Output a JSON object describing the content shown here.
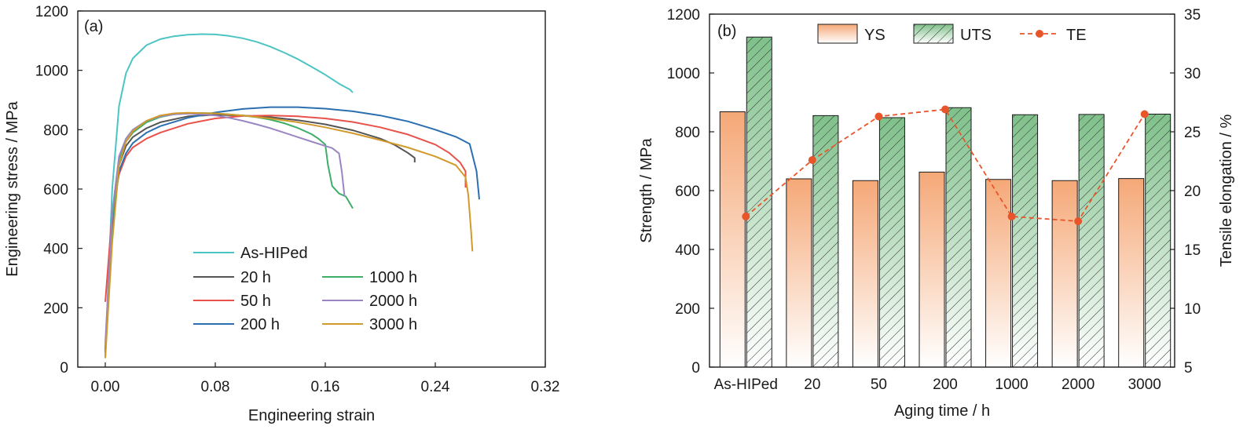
{
  "chart_data": [
    {
      "type": "line",
      "panel_label": "(a)",
      "xlabel": "Engineering strain",
      "ylabel": "Engineering stress / MPa",
      "xlim": [
        -0.02,
        0.32
      ],
      "ylim": [
        0,
        1200
      ],
      "xticks": [
        0.0,
        0.08,
        0.16,
        0.24,
        0.32
      ],
      "xtick_labels": [
        "0.00",
        "0.08",
        "0.16",
        "0.24",
        "0.32"
      ],
      "yticks": [
        0,
        200,
        400,
        600,
        800,
        1000,
        1200
      ],
      "ytick_labels": [
        "0",
        "200",
        "400",
        "600",
        "800",
        "1000",
        "1200"
      ],
      "grid": false,
      "legend_placement": "bottom-center, two columns",
      "series": [
        {
          "name": "As-HIPed",
          "color": "#4cc4c4",
          "x": [
            0.0,
            0.005,
            0.01,
            0.015,
            0.02,
            0.03,
            0.04,
            0.05,
            0.06,
            0.07,
            0.08,
            0.09,
            0.1,
            0.11,
            0.12,
            0.13,
            0.14,
            0.15,
            0.16,
            0.17,
            0.178,
            0.18
          ],
          "y": [
            40,
            600,
            880,
            990,
            1040,
            1085,
            1105,
            1115,
            1120,
            1122,
            1121,
            1116,
            1108,
            1096,
            1080,
            1060,
            1038,
            1012,
            985,
            955,
            935,
            925
          ]
        },
        {
          "name": "20 h",
          "color": "#555555",
          "x": [
            0.0,
            0.005,
            0.01,
            0.015,
            0.02,
            0.03,
            0.04,
            0.06,
            0.08,
            0.1,
            0.12,
            0.14,
            0.16,
            0.18,
            0.2,
            0.21,
            0.22,
            0.225,
            0.225
          ],
          "y": [
            50,
            450,
            680,
            745,
            775,
            805,
            825,
            845,
            850,
            848,
            842,
            832,
            818,
            798,
            770,
            750,
            722,
            705,
            690
          ]
        },
        {
          "name": "50 h",
          "color": "#e8524a",
          "x": [
            0.0,
            0.005,
            0.01,
            0.015,
            0.02,
            0.03,
            0.04,
            0.06,
            0.08,
            0.1,
            0.12,
            0.14,
            0.16,
            0.18,
            0.2,
            0.22,
            0.24,
            0.25,
            0.258,
            0.262,
            0.262
          ],
          "y": [
            220,
            520,
            650,
            710,
            740,
            770,
            790,
            820,
            838,
            846,
            848,
            845,
            838,
            826,
            808,
            784,
            750,
            722,
            690,
            660,
            605
          ]
        },
        {
          "name": "200 h",
          "color": "#2c6fb0",
          "x": [
            0.0,
            0.005,
            0.01,
            0.015,
            0.02,
            0.03,
            0.04,
            0.06,
            0.08,
            0.1,
            0.12,
            0.14,
            0.16,
            0.18,
            0.2,
            0.22,
            0.24,
            0.255,
            0.265,
            0.27,
            0.272
          ],
          "y": [
            60,
            480,
            660,
            720,
            755,
            790,
            812,
            840,
            858,
            870,
            876,
            876,
            871,
            862,
            848,
            828,
            800,
            776,
            752,
            660,
            565
          ]
        },
        {
          "name": "1000 h",
          "color": "#3fae66",
          "x": [
            0.0,
            0.005,
            0.01,
            0.015,
            0.02,
            0.03,
            0.04,
            0.05,
            0.06,
            0.07,
            0.08,
            0.09,
            0.1,
            0.11,
            0.12,
            0.13,
            0.14,
            0.15,
            0.155,
            0.16,
            0.162,
            0.165,
            0.17,
            0.175,
            0.18
          ],
          "y": [
            30,
            500,
            700,
            760,
            790,
            825,
            843,
            852,
            855,
            856,
            855,
            852,
            848,
            842,
            834,
            822,
            806,
            785,
            770,
            750,
            680,
            610,
            585,
            575,
            535
          ]
        },
        {
          "name": "2000 h",
          "color": "#9b86c4",
          "x": [
            0.0,
            0.005,
            0.01,
            0.015,
            0.02,
            0.03,
            0.04,
            0.05,
            0.06,
            0.07,
            0.08,
            0.09,
            0.1,
            0.11,
            0.12,
            0.13,
            0.14,
            0.15,
            0.16,
            0.165,
            0.17,
            0.172,
            0.174
          ],
          "y": [
            80,
            520,
            710,
            770,
            800,
            830,
            845,
            852,
            854,
            852,
            848,
            840,
            830,
            818,
            805,
            790,
            775,
            760,
            745,
            738,
            720,
            660,
            575
          ]
        },
        {
          "name": "3000 h",
          "color": "#d19a2a",
          "x": [
            0.0,
            0.005,
            0.01,
            0.015,
            0.02,
            0.03,
            0.04,
            0.05,
            0.06,
            0.08,
            0.1,
            0.12,
            0.14,
            0.16,
            0.18,
            0.2,
            0.22,
            0.24,
            0.255,
            0.262,
            0.264,
            0.266,
            0.267
          ],
          "y": [
            30,
            420,
            680,
            760,
            795,
            830,
            848,
            855,
            857,
            855,
            848,
            838,
            825,
            808,
            788,
            765,
            740,
            710,
            680,
            640,
            580,
            460,
            390
          ]
        }
      ]
    },
    {
      "type": "bar",
      "panel_label": "(b)",
      "xlabel": "Aging time / h",
      "ylabel": "Strength / MPa",
      "y2label": "Tensile elongation / %",
      "categories": [
        "As-HIPed",
        "20",
        "50",
        "200",
        "1000",
        "2000",
        "3000"
      ],
      "ylim": [
        0,
        1200
      ],
      "y2lim": [
        5,
        35
      ],
      "yticks": [
        0,
        200,
        400,
        600,
        800,
        1000,
        1200
      ],
      "ytick_labels": [
        "0",
        "200",
        "400",
        "600",
        "800",
        "1000",
        "1200"
      ],
      "y2ticks": [
        5,
        10,
        15,
        20,
        25,
        30,
        35
      ],
      "y2tick_labels": [
        "5",
        "10",
        "15",
        "20",
        "25",
        "30",
        "35"
      ],
      "grid": false,
      "legend_placement": "top, one row",
      "series": [
        {
          "name": "YS",
          "kind": "bar",
          "color": "#f5a877",
          "values": [
            868,
            640,
            634,
            663,
            638,
            634,
            641
          ]
        },
        {
          "name": "UTS",
          "kind": "bar-hatched",
          "color": "#7fc08a",
          "values": [
            1122,
            855,
            848,
            882,
            858,
            859,
            860
          ]
        },
        {
          "name": "TE",
          "kind": "line-dashed-markers",
          "axis": "right",
          "color": "#e8552a",
          "values": [
            17.8,
            22.6,
            26.3,
            26.9,
            17.8,
            17.4,
            26.5
          ]
        }
      ]
    }
  ]
}
